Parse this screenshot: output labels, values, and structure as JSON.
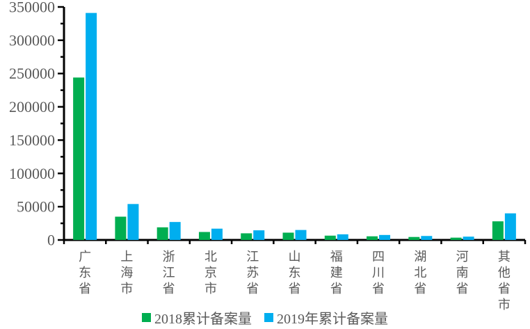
{
  "chart_data": {
    "type": "bar",
    "title": "",
    "xlabel": "",
    "ylabel": "",
    "categories": [
      "广东省",
      "上海市",
      "浙江省",
      "北京市",
      "江苏省",
      "山东省",
      "福建省",
      "四川省",
      "湖北省",
      "河南省",
      "其他省市"
    ],
    "series": [
      {
        "name": "2018累计备案量",
        "color": "#00AE50",
        "values": [
          244000,
          35000,
          19000,
          12000,
          10000,
          11000,
          6500,
          5500,
          4500,
          3500,
          28000
        ]
      },
      {
        "name": "2019年累计备案量",
        "color": "#00AEEF",
        "values": [
          341000,
          54000,
          27000,
          17000,
          14500,
          15000,
          8500,
          7500,
          6000,
          5000,
          40000
        ]
      }
    ],
    "ylim": [
      0,
      350000
    ],
    "yticks": [
      0,
      50000,
      100000,
      150000,
      200000,
      250000,
      300000,
      350000
    ],
    "minor_tick_interval": 25000,
    "grid": false,
    "legend_position": "bottom",
    "axis_color": "#000000",
    "tick_label_color": "#595959",
    "background": "#FFFFFF"
  }
}
